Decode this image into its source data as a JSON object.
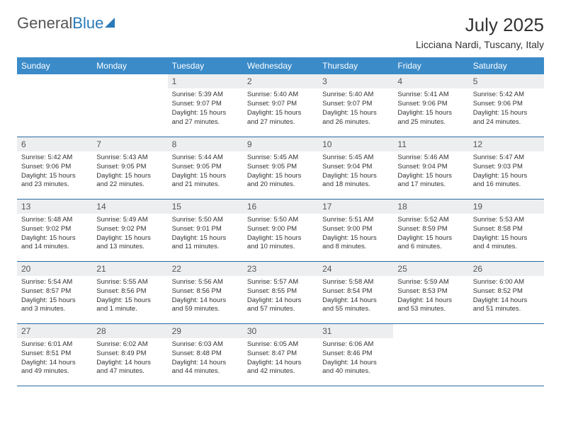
{
  "logo": {
    "part1": "General",
    "part2": "Blue"
  },
  "title": "July 2025",
  "location": "Licciana Nardi, Tuscany, Italy",
  "header_bg": "#3b8bc9",
  "daybar_bg": "#eceef0",
  "rule_color": "#2a6aa0",
  "weekdays": [
    "Sunday",
    "Monday",
    "Tuesday",
    "Wednesday",
    "Thursday",
    "Friday",
    "Saturday"
  ],
  "weeks": [
    [
      {
        "n": "",
        "sr": "",
        "ss": "",
        "dl": ""
      },
      {
        "n": "",
        "sr": "",
        "ss": "",
        "dl": ""
      },
      {
        "n": "1",
        "sr": "Sunrise: 5:39 AM",
        "ss": "Sunset: 9:07 PM",
        "dl": "Daylight: 15 hours and 27 minutes."
      },
      {
        "n": "2",
        "sr": "Sunrise: 5:40 AM",
        "ss": "Sunset: 9:07 PM",
        "dl": "Daylight: 15 hours and 27 minutes."
      },
      {
        "n": "3",
        "sr": "Sunrise: 5:40 AM",
        "ss": "Sunset: 9:07 PM",
        "dl": "Daylight: 15 hours and 26 minutes."
      },
      {
        "n": "4",
        "sr": "Sunrise: 5:41 AM",
        "ss": "Sunset: 9:06 PM",
        "dl": "Daylight: 15 hours and 25 minutes."
      },
      {
        "n": "5",
        "sr": "Sunrise: 5:42 AM",
        "ss": "Sunset: 9:06 PM",
        "dl": "Daylight: 15 hours and 24 minutes."
      }
    ],
    [
      {
        "n": "6",
        "sr": "Sunrise: 5:42 AM",
        "ss": "Sunset: 9:06 PM",
        "dl": "Daylight: 15 hours and 23 minutes."
      },
      {
        "n": "7",
        "sr": "Sunrise: 5:43 AM",
        "ss": "Sunset: 9:05 PM",
        "dl": "Daylight: 15 hours and 22 minutes."
      },
      {
        "n": "8",
        "sr": "Sunrise: 5:44 AM",
        "ss": "Sunset: 9:05 PM",
        "dl": "Daylight: 15 hours and 21 minutes."
      },
      {
        "n": "9",
        "sr": "Sunrise: 5:45 AM",
        "ss": "Sunset: 9:05 PM",
        "dl": "Daylight: 15 hours and 20 minutes."
      },
      {
        "n": "10",
        "sr": "Sunrise: 5:45 AM",
        "ss": "Sunset: 9:04 PM",
        "dl": "Daylight: 15 hours and 18 minutes."
      },
      {
        "n": "11",
        "sr": "Sunrise: 5:46 AM",
        "ss": "Sunset: 9:04 PM",
        "dl": "Daylight: 15 hours and 17 minutes."
      },
      {
        "n": "12",
        "sr": "Sunrise: 5:47 AM",
        "ss": "Sunset: 9:03 PM",
        "dl": "Daylight: 15 hours and 16 minutes."
      }
    ],
    [
      {
        "n": "13",
        "sr": "Sunrise: 5:48 AM",
        "ss": "Sunset: 9:02 PM",
        "dl": "Daylight: 15 hours and 14 minutes."
      },
      {
        "n": "14",
        "sr": "Sunrise: 5:49 AM",
        "ss": "Sunset: 9:02 PM",
        "dl": "Daylight: 15 hours and 13 minutes."
      },
      {
        "n": "15",
        "sr": "Sunrise: 5:50 AM",
        "ss": "Sunset: 9:01 PM",
        "dl": "Daylight: 15 hours and 11 minutes."
      },
      {
        "n": "16",
        "sr": "Sunrise: 5:50 AM",
        "ss": "Sunset: 9:00 PM",
        "dl": "Daylight: 15 hours and 10 minutes."
      },
      {
        "n": "17",
        "sr": "Sunrise: 5:51 AM",
        "ss": "Sunset: 9:00 PM",
        "dl": "Daylight: 15 hours and 8 minutes."
      },
      {
        "n": "18",
        "sr": "Sunrise: 5:52 AM",
        "ss": "Sunset: 8:59 PM",
        "dl": "Daylight: 15 hours and 6 minutes."
      },
      {
        "n": "19",
        "sr": "Sunrise: 5:53 AM",
        "ss": "Sunset: 8:58 PM",
        "dl": "Daylight: 15 hours and 4 minutes."
      }
    ],
    [
      {
        "n": "20",
        "sr": "Sunrise: 5:54 AM",
        "ss": "Sunset: 8:57 PM",
        "dl": "Daylight: 15 hours and 3 minutes."
      },
      {
        "n": "21",
        "sr": "Sunrise: 5:55 AM",
        "ss": "Sunset: 8:56 PM",
        "dl": "Daylight: 15 hours and 1 minute."
      },
      {
        "n": "22",
        "sr": "Sunrise: 5:56 AM",
        "ss": "Sunset: 8:56 PM",
        "dl": "Daylight: 14 hours and 59 minutes."
      },
      {
        "n": "23",
        "sr": "Sunrise: 5:57 AM",
        "ss": "Sunset: 8:55 PM",
        "dl": "Daylight: 14 hours and 57 minutes."
      },
      {
        "n": "24",
        "sr": "Sunrise: 5:58 AM",
        "ss": "Sunset: 8:54 PM",
        "dl": "Daylight: 14 hours and 55 minutes."
      },
      {
        "n": "25",
        "sr": "Sunrise: 5:59 AM",
        "ss": "Sunset: 8:53 PM",
        "dl": "Daylight: 14 hours and 53 minutes."
      },
      {
        "n": "26",
        "sr": "Sunrise: 6:00 AM",
        "ss": "Sunset: 8:52 PM",
        "dl": "Daylight: 14 hours and 51 minutes."
      }
    ],
    [
      {
        "n": "27",
        "sr": "Sunrise: 6:01 AM",
        "ss": "Sunset: 8:51 PM",
        "dl": "Daylight: 14 hours and 49 minutes."
      },
      {
        "n": "28",
        "sr": "Sunrise: 6:02 AM",
        "ss": "Sunset: 8:49 PM",
        "dl": "Daylight: 14 hours and 47 minutes."
      },
      {
        "n": "29",
        "sr": "Sunrise: 6:03 AM",
        "ss": "Sunset: 8:48 PM",
        "dl": "Daylight: 14 hours and 44 minutes."
      },
      {
        "n": "30",
        "sr": "Sunrise: 6:05 AM",
        "ss": "Sunset: 8:47 PM",
        "dl": "Daylight: 14 hours and 42 minutes."
      },
      {
        "n": "31",
        "sr": "Sunrise: 6:06 AM",
        "ss": "Sunset: 8:46 PM",
        "dl": "Daylight: 14 hours and 40 minutes."
      },
      {
        "n": "",
        "sr": "",
        "ss": "",
        "dl": ""
      },
      {
        "n": "",
        "sr": "",
        "ss": "",
        "dl": ""
      }
    ]
  ]
}
